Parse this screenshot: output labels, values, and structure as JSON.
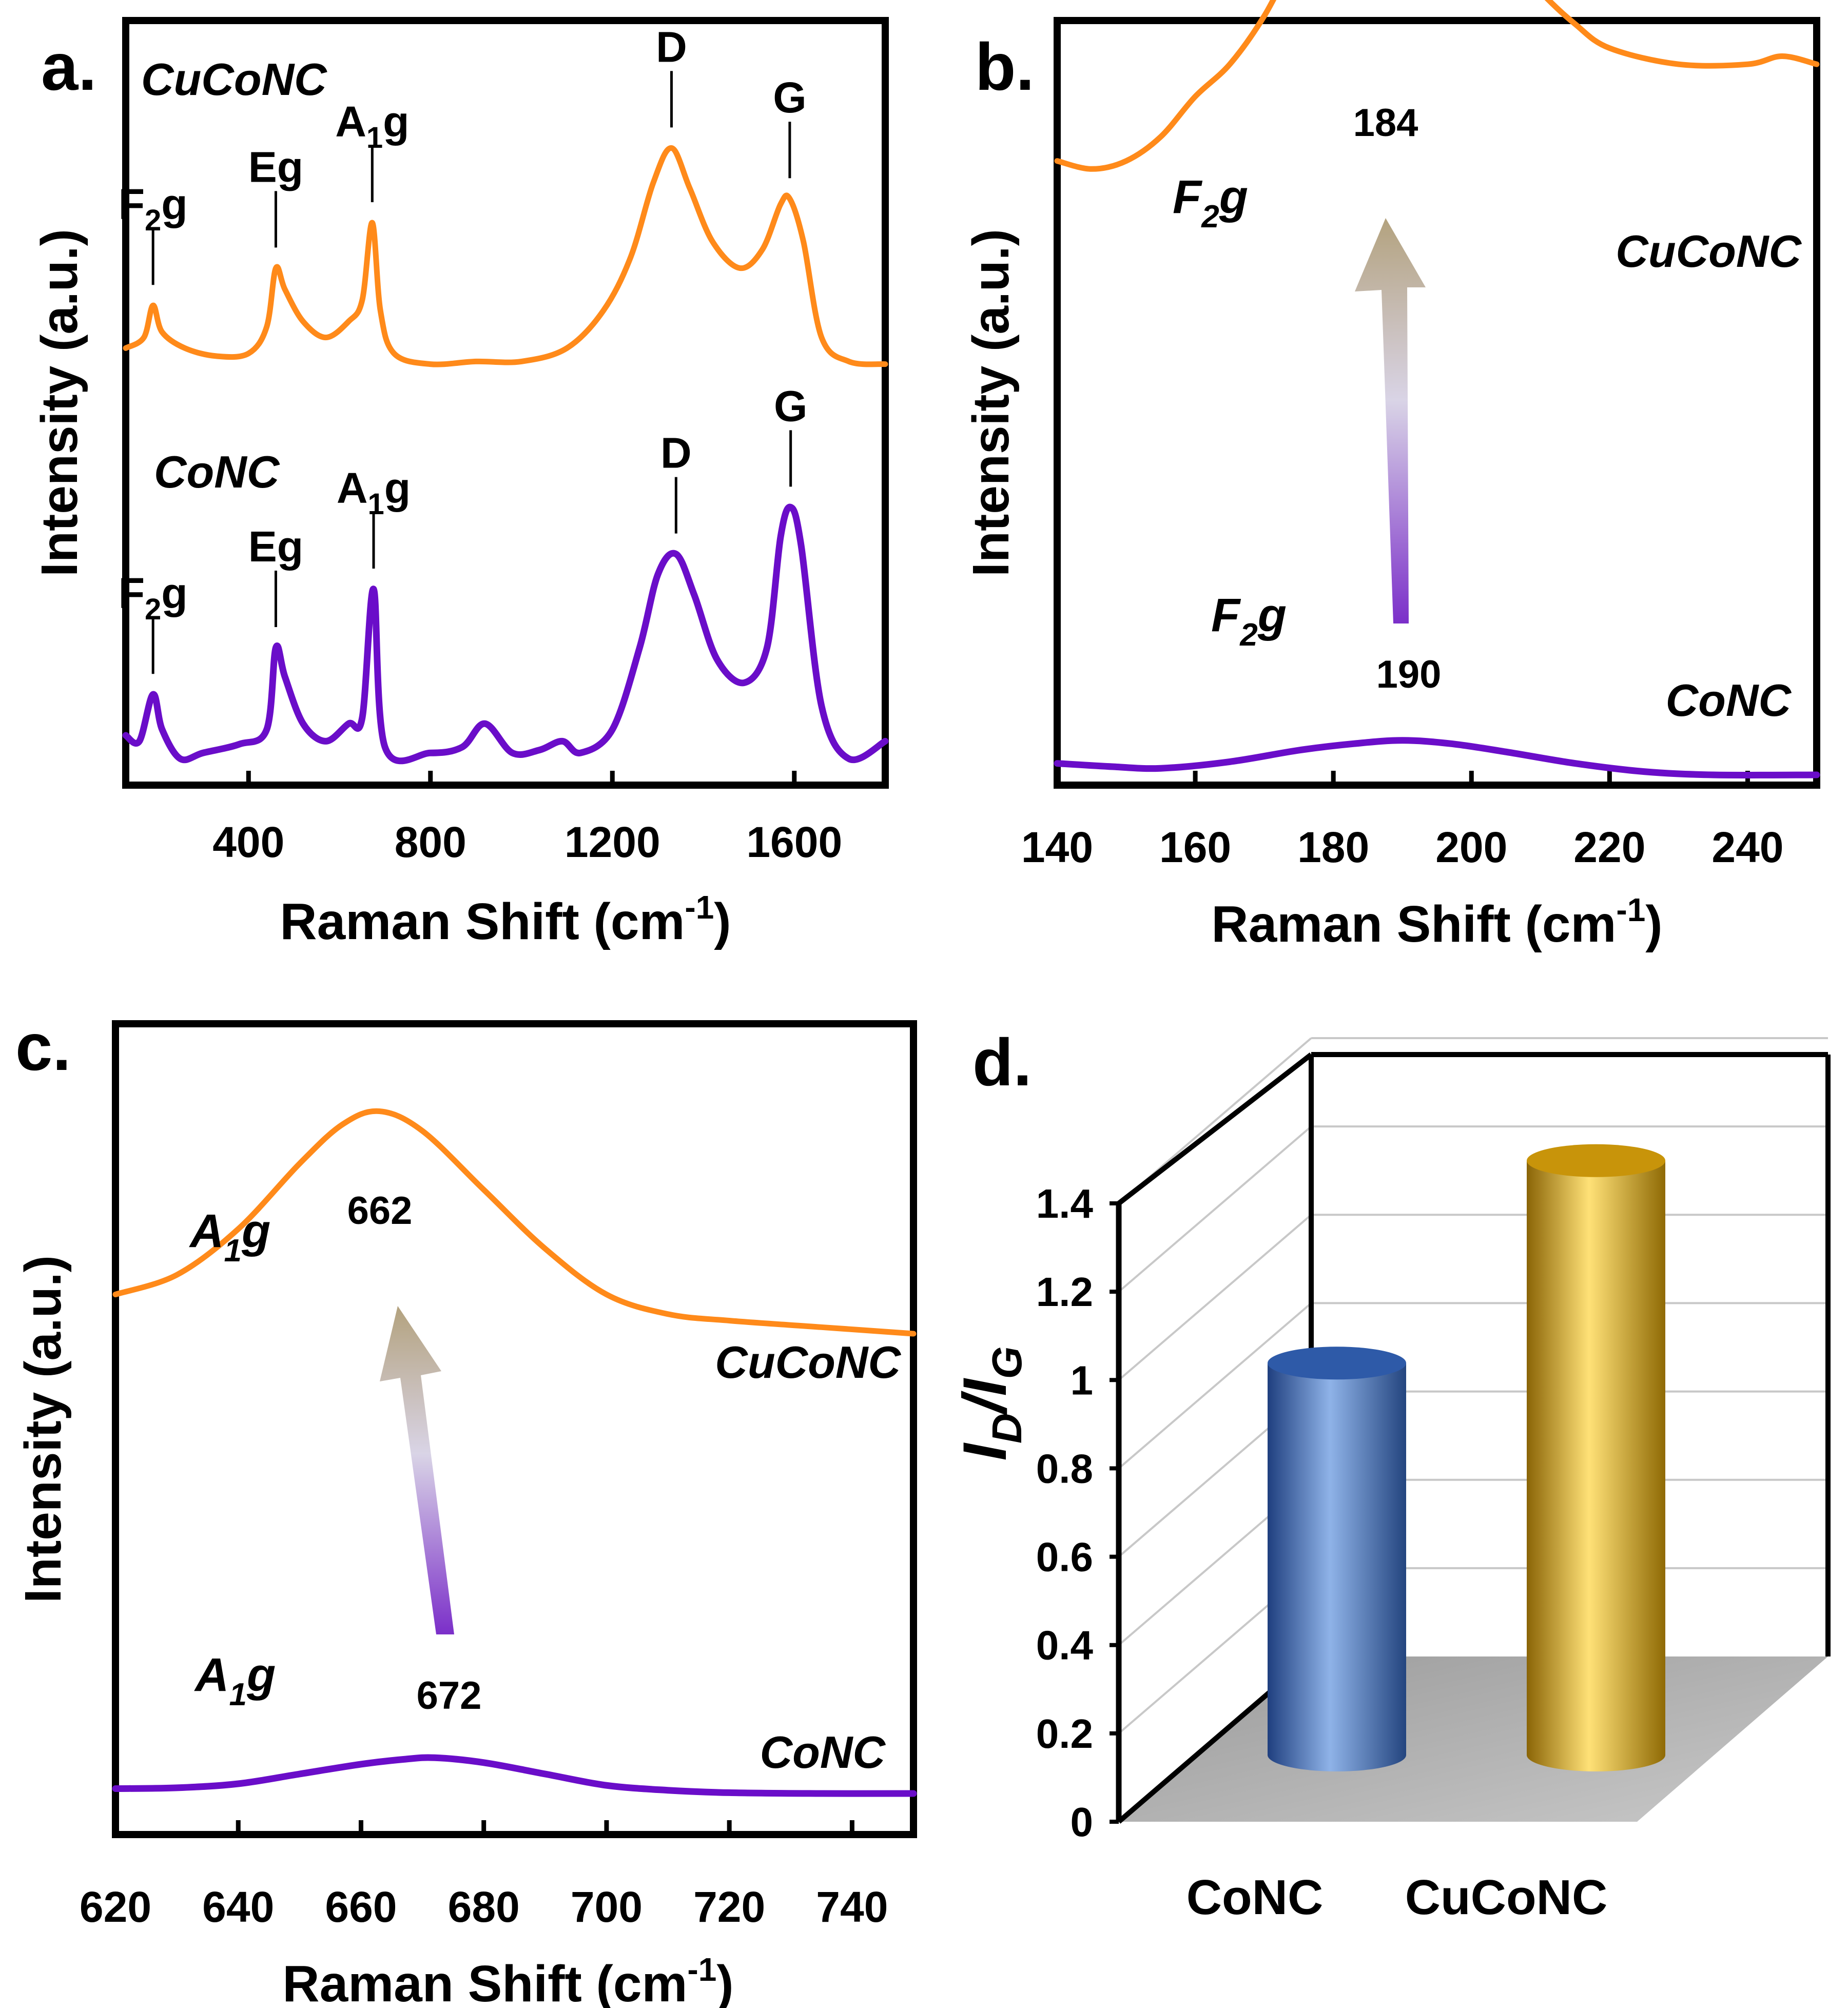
{
  "chart_data": [
    {
      "panel": "a.",
      "type": "line",
      "xlabel": "Raman Shift (cm",
      "xlabel_sup": "-1",
      "xlabel_close": ")",
      "ylabel": "Intensity (a.u.)",
      "xlim": [
        130,
        1800
      ],
      "xticks": [
        400,
        800,
        1200,
        1600
      ],
      "series": [
        {
          "name": "CuCoNC",
          "color": "#FF8A1A",
          "points": [
            [
              130,
              0.08
            ],
            [
              170,
              0.12
            ],
            [
              190,
              0.24
            ],
            [
              210,
              0.14
            ],
            [
              260,
              0.08
            ],
            [
              330,
              0.05
            ],
            [
              400,
              0.06
            ],
            [
              440,
              0.16
            ],
            [
              460,
              0.38
            ],
            [
              480,
              0.3
            ],
            [
              520,
              0.18
            ],
            [
              570,
              0.12
            ],
            [
              620,
              0.18
            ],
            [
              650,
              0.26
            ],
            [
              672,
              0.55
            ],
            [
              690,
              0.22
            ],
            [
              720,
              0.06
            ],
            [
              800,
              0.02
            ],
            [
              900,
              0.03
            ],
            [
              1000,
              0.03
            ],
            [
              1100,
              0.08
            ],
            [
              1180,
              0.22
            ],
            [
              1240,
              0.42
            ],
            [
              1290,
              0.7
            ],
            [
              1330,
              0.83
            ],
            [
              1370,
              0.68
            ],
            [
              1420,
              0.48
            ],
            [
              1480,
              0.38
            ],
            [
              1530,
              0.45
            ],
            [
              1570,
              0.62
            ],
            [
              1590,
              0.64
            ],
            [
              1620,
              0.48
            ],
            [
              1660,
              0.12
            ],
            [
              1720,
              0.03
            ],
            [
              1800,
              0.02
            ]
          ],
          "peaks": [
            {
              "label": "F",
              "sub": "2",
              "suffix": "g",
              "x": 190
            },
            {
              "label": "Eg",
              "sub": "",
              "suffix": "",
              "x": 460
            },
            {
              "label": "A",
              "sub": "1",
              "suffix": "g",
              "x": 672
            },
            {
              "label": "D",
              "sub": "",
              "suffix": "",
              "x": 1330
            },
            {
              "label": "G",
              "sub": "",
              "suffix": "",
              "x": 1590
            }
          ]
        },
        {
          "name": "CoNC",
          "color": "#6A0DC9",
          "points": [
            [
              130,
              0.1
            ],
            [
              160,
              0.08
            ],
            [
              190,
              0.24
            ],
            [
              210,
              0.12
            ],
            [
              250,
              0.02
            ],
            [
              300,
              0.04
            ],
            [
              380,
              0.07
            ],
            [
              440,
              0.12
            ],
            [
              460,
              0.4
            ],
            [
              480,
              0.3
            ],
            [
              520,
              0.14
            ],
            [
              570,
              0.08
            ],
            [
              620,
              0.14
            ],
            [
              650,
              0.16
            ],
            [
              675,
              0.6
            ],
            [
              700,
              0.06
            ],
            [
              800,
              0.04
            ],
            [
              870,
              0.06
            ],
            [
              920,
              0.14
            ],
            [
              980,
              0.04
            ],
            [
              1040,
              0.05
            ],
            [
              1090,
              0.08
            ],
            [
              1130,
              0.04
            ],
            [
              1200,
              0.12
            ],
            [
              1260,
              0.4
            ],
            [
              1300,
              0.65
            ],
            [
              1340,
              0.72
            ],
            [
              1380,
              0.58
            ],
            [
              1430,
              0.36
            ],
            [
              1490,
              0.28
            ],
            [
              1540,
              0.4
            ],
            [
              1570,
              0.78
            ],
            [
              1592,
              0.88
            ],
            [
              1615,
              0.75
            ],
            [
              1660,
              0.2
            ],
            [
              1720,
              0.02
            ],
            [
              1800,
              0.08
            ]
          ],
          "peaks": [
            {
              "label": "F",
              "sub": "2",
              "suffix": "g",
              "x": 190
            },
            {
              "label": "Eg",
              "sub": "",
              "suffix": "",
              "x": 460
            },
            {
              "label": "A",
              "sub": "1",
              "suffix": "g",
              "x": 675
            },
            {
              "label": "D",
              "sub": "",
              "suffix": "",
              "x": 1340
            },
            {
              "label": "G",
              "sub": "",
              "suffix": "",
              "x": 1592
            }
          ]
        }
      ]
    },
    {
      "panel": "b.",
      "type": "line",
      "xlabel": "Raman Shift (cm",
      "xlabel_sup": "-1",
      "xlabel_close": ")",
      "ylabel": "Intensity (a.u.)",
      "xlim": [
        140,
        250
      ],
      "xticks": [
        140,
        160,
        180,
        200,
        220,
        240
      ],
      "series": [
        {
          "name": "CuCoNC",
          "color": "#FF8A1A",
          "peak_position": "184",
          "points": [
            [
              140,
              0.52
            ],
            [
              145,
              0.51
            ],
            [
              150,
              0.52
            ],
            [
              155,
              0.55
            ],
            [
              160,
              0.6
            ],
            [
              165,
              0.64
            ],
            [
              170,
              0.7
            ],
            [
              175,
              0.78
            ],
            [
              180,
              0.84
            ],
            [
              185,
              0.88
            ],
            [
              190,
              0.89
            ],
            [
              195,
              0.88
            ],
            [
              200,
              0.82
            ],
            [
              205,
              0.78
            ],
            [
              210,
              0.73
            ],
            [
              215,
              0.69
            ],
            [
              220,
              0.66
            ],
            [
              230,
              0.64
            ],
            [
              240,
              0.64
            ],
            [
              245,
              0.65
            ],
            [
              250,
              0.64
            ]
          ]
        },
        {
          "name": "CoNC",
          "color": "#6A0DC9",
          "peak_position": "190",
          "points": [
            [
              140,
              0.07
            ],
            [
              148,
              0.05
            ],
            [
              155,
              0.04
            ],
            [
              165,
              0.08
            ],
            [
              175,
              0.15
            ],
            [
              183,
              0.19
            ],
            [
              190,
              0.21
            ],
            [
              197,
              0.19
            ],
            [
              205,
              0.14
            ],
            [
              215,
              0.07
            ],
            [
              225,
              0.02
            ],
            [
              235,
              0.0
            ],
            [
              250,
              0.0
            ]
          ]
        }
      ],
      "mode_label": {
        "label": "F",
        "sub": "2",
        "suffix": "g"
      }
    },
    {
      "panel": "c.",
      "type": "line",
      "xlabel": "Raman Shift (cm",
      "xlabel_sup": "-1",
      "xlabel_close": ")",
      "ylabel": "Intensity (a.u.)",
      "xlim": [
        620,
        750
      ],
      "xticks": [
        620,
        640,
        660,
        680,
        700,
        720,
        740
      ],
      "series": [
        {
          "name": "CuCoNC",
          "color": "#FF8A1A",
          "peak_position": "662",
          "points": [
            [
              620,
              0.5
            ],
            [
              630,
              0.53
            ],
            [
              640,
              0.6
            ],
            [
              650,
              0.7
            ],
            [
              657,
              0.76
            ],
            [
              663,
              0.78
            ],
            [
              670,
              0.75
            ],
            [
              680,
              0.66
            ],
            [
              690,
              0.57
            ],
            [
              700,
              0.5
            ],
            [
              710,
              0.47
            ],
            [
              720,
              0.46
            ],
            [
              735,
              0.45
            ],
            [
              750,
              0.44
            ]
          ]
        },
        {
          "name": "CoNC",
          "color": "#6A0DC9",
          "peak_position": "672",
          "points": [
            [
              620,
              0.03
            ],
            [
              630,
              0.035
            ],
            [
              640,
              0.06
            ],
            [
              650,
              0.12
            ],
            [
              660,
              0.18
            ],
            [
              667,
              0.21
            ],
            [
              672,
              0.22
            ],
            [
              680,
              0.19
            ],
            [
              690,
              0.12
            ],
            [
              700,
              0.05
            ],
            [
              710,
              0.02
            ],
            [
              720,
              0.005
            ],
            [
              735,
              0.0
            ],
            [
              750,
              0.0
            ]
          ]
        }
      ],
      "mode_label": {
        "label": "A",
        "sub": "1",
        "suffix": "g"
      }
    },
    {
      "panel": "d.",
      "type": "bar",
      "ylabel": "I",
      "ylabel_sub1": "D",
      "ylabel_slash": "/I",
      "ylabel_sub2": "G",
      "ylim": [
        0,
        1.4
      ],
      "yticks": [
        "0",
        "0.2",
        "0.4",
        "0.6",
        "0.8",
        "1",
        "1.2",
        "1.4"
      ],
      "categories": [
        "CoNC",
        "CuCoNC"
      ],
      "values": [
        0.91,
        1.38
      ],
      "colors": [
        "#3D6FC4",
        "#F2B90C"
      ]
    }
  ]
}
